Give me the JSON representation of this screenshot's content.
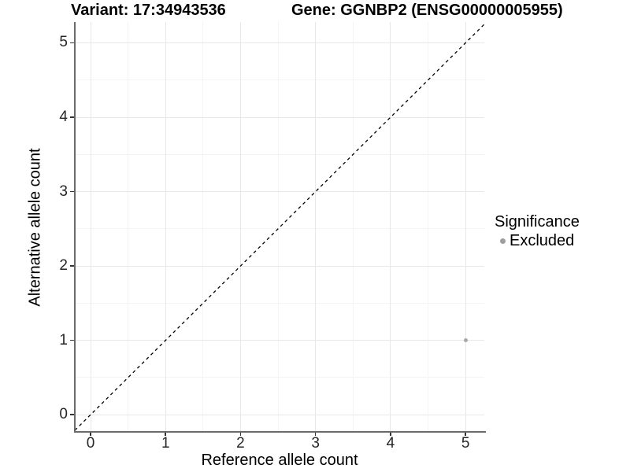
{
  "chart_data": {
    "type": "scatter",
    "title_left": "Variant: 17:34943536",
    "title_right": "Gene: GGNBP2 (ENSG00000005955)",
    "xlabel": "Reference allele count",
    "ylabel": "Alternative allele count",
    "xlim": [
      -0.21,
      5.25
    ],
    "ylim": [
      -0.22,
      5.28
    ],
    "xticks": [
      0,
      1,
      2,
      3,
      4,
      5
    ],
    "yticks": [
      0,
      1,
      2,
      3,
      4,
      5
    ],
    "minor_breaks_x": [
      0.5,
      1.5,
      2.5,
      3.5,
      4.5
    ],
    "minor_breaks_y": [
      0.5,
      1.5,
      2.5,
      3.5,
      4.5
    ],
    "grid": "on",
    "identity_line": {
      "slope": 1,
      "intercept": 0,
      "style": "dashed",
      "color": "#000000"
    },
    "series": [
      {
        "name": "Excluded",
        "color": "#a8a8a8",
        "point_size": 5,
        "points": [
          {
            "x": 5,
            "y": 1
          }
        ]
      }
    ],
    "legend": {
      "title": "Significance",
      "position": "right",
      "items": [
        {
          "label": "Excluded",
          "color": "#9e9e9e"
        }
      ]
    },
    "colors": {
      "background": "#ffffff",
      "grid_major": "#e8e8e8",
      "grid_minor": "#f4f4f4",
      "axis_line": "#6a6a6a",
      "tick_mark": "#333333",
      "tick_label": "#262626",
      "title_text": "#000000"
    }
  }
}
